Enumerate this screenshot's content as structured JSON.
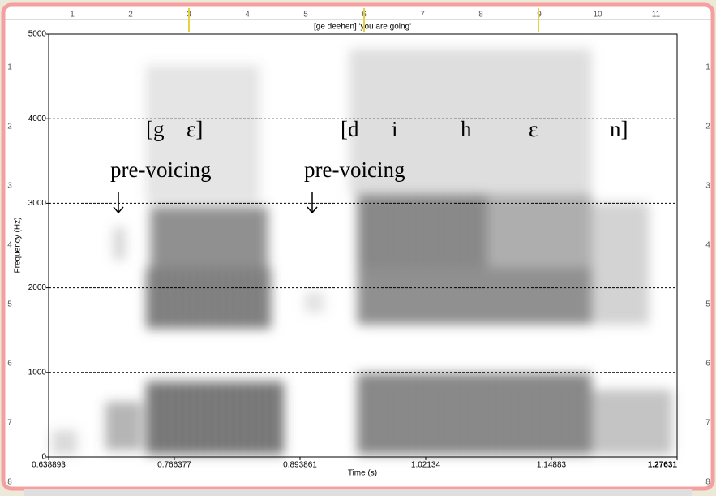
{
  "chart_data": {
    "type": "spectrogram",
    "title": "[ge deehen] 'you are going'",
    "x_label": "Time (s)",
    "y_label": "Frequency (Hz)",
    "xlim": [
      0.638893,
      1.27631
    ],
    "xticks": [
      0.638893,
      0.766377,
      0.893861,
      1.02134,
      1.14883,
      1.27631
    ],
    "ylim": [
      0,
      5000
    ],
    "yticks": [
      0,
      1000,
      2000,
      3000,
      4000,
      5000
    ],
    "grid": true,
    "segments": [
      "[g",
      "ε]",
      "[d",
      "i",
      "h",
      "ε",
      "n]"
    ],
    "annotations": [
      "pre-voicing",
      "pre-voicing"
    ],
    "ruler_top": [
      1,
      2,
      3,
      4,
      5,
      6,
      7,
      8,
      9,
      10,
      11
    ],
    "ruler_left": [
      1,
      2,
      3,
      4,
      5,
      6,
      7,
      8
    ],
    "ruler_right": [
      1,
      2,
      3,
      4,
      5,
      6,
      7,
      8
    ]
  }
}
